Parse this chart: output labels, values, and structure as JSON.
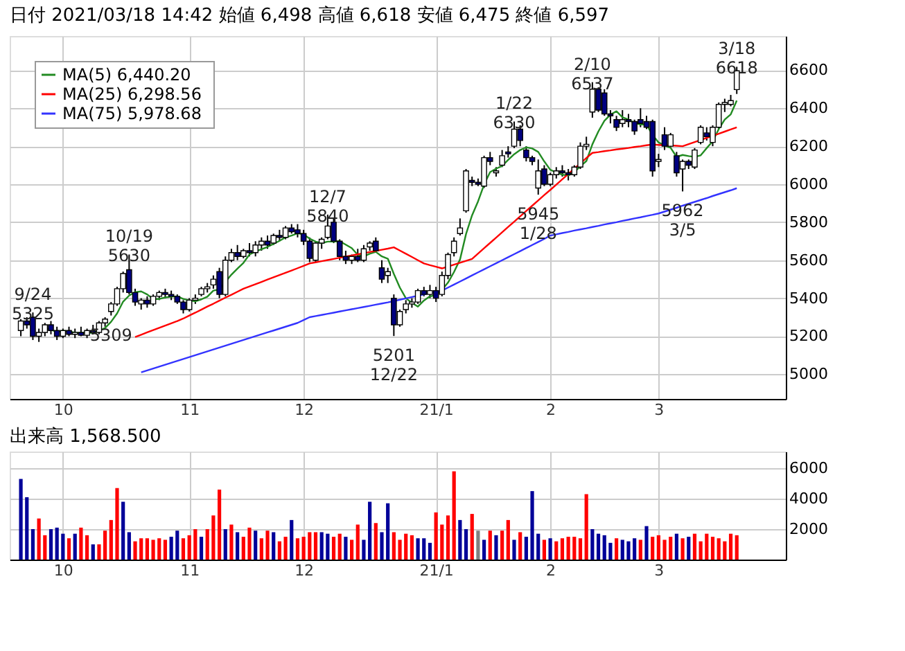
{
  "chart_data": [
    {
      "type": "candlestick",
      "title": "日付 2021/03/18 14:42 始値 6,498 高値 6,618 安値 6,475 終値 6,597",
      "categories": [
        null,
        null,
        null,
        null,
        null,
        null,
        null,
        "10",
        null,
        null,
        null,
        null,
        null,
        null,
        null,
        null,
        null,
        null,
        null,
        null,
        null,
        null,
        null,
        null,
        null,
        null,
        null,
        null,
        "11",
        null,
        null,
        null,
        null,
        null,
        null,
        null,
        null,
        null,
        null,
        null,
        null,
        null,
        null,
        null,
        null,
        null,
        null,
        "12",
        null,
        null,
        null,
        null,
        null,
        null,
        null,
        null,
        null,
        null,
        null,
        null,
        null,
        null,
        null,
        null,
        null,
        null,
        null,
        null,
        null,
        "21/1",
        null,
        null,
        null,
        null,
        null,
        null,
        null,
        null,
        null,
        null,
        null,
        null,
        null,
        null,
        null,
        null,
        null,
        null,
        "2",
        null,
        null,
        null,
        null,
        null,
        null,
        null,
        null,
        null,
        null,
        null,
        null,
        null,
        null,
        null,
        null,
        null,
        "3",
        null,
        null,
        null,
        null,
        null,
        null,
        null,
        null,
        null,
        null,
        null,
        null,
        null
      ],
      "ohlc": [
        [
          5230,
          5290,
          5200,
          5280
        ],
        [
          5280,
          5300,
          5240,
          5260
        ],
        [
          5300,
          5325,
          5180,
          5200
        ],
        [
          5200,
          5240,
          5170,
          5220
        ],
        [
          5220,
          5270,
          5200,
          5260
        ],
        [
          5260,
          5280,
          5210,
          5230
        ],
        [
          5230,
          5250,
          5180,
          5200
        ],
        [
          5200,
          5240,
          5190,
          5230
        ],
        [
          5230,
          5250,
          5200,
          5210
        ],
        [
          5210,
          5240,
          5190,
          5220
        ],
        [
          5220,
          5250,
          5200,
          5205
        ],
        [
          5205,
          5240,
          5190,
          5230
        ],
        [
          5230,
          5260,
          5210,
          5220
        ],
        [
          5220,
          5280,
          5210,
          5270
        ],
        [
          5270,
          5300,
          5250,
          5290
        ],
        [
          5330,
          5380,
          5309,
          5370
        ],
        [
          5370,
          5460,
          5360,
          5450
        ],
        [
          5450,
          5540,
          5430,
          5530
        ],
        [
          5550,
          5630,
          5420,
          5430
        ],
        [
          5430,
          5450,
          5360,
          5380
        ],
        [
          5370,
          5400,
          5340,
          5390
        ],
        [
          5390,
          5410,
          5350,
          5370
        ],
        [
          5370,
          5420,
          5360,
          5410
        ],
        [
          5410,
          5440,
          5390,
          5430
        ],
        [
          5430,
          5450,
          5400,
          5420
        ],
        [
          5420,
          5440,
          5390,
          5410
        ],
        [
          5410,
          5420,
          5370,
          5380
        ],
        [
          5380,
          5390,
          5320,
          5340
        ],
        [
          5340,
          5400,
          5330,
          5390
        ],
        [
          5390,
          5420,
          5370,
          5400
        ],
        [
          5420,
          5460,
          5410,
          5450
        ],
        [
          5450,
          5480,
          5430,
          5460
        ],
        [
          5470,
          5520,
          5450,
          5500
        ],
        [
          5540,
          5560,
          5400,
          5420
        ],
        [
          5420,
          5620,
          5410,
          5600
        ],
        [
          5600,
          5660,
          5590,
          5640
        ],
        [
          5640,
          5680,
          5600,
          5620
        ],
        [
          5620,
          5660,
          5610,
          5650
        ],
        [
          5650,
          5690,
          5620,
          5640
        ],
        [
          5640,
          5700,
          5620,
          5680
        ],
        [
          5680,
          5720,
          5650,
          5700
        ],
        [
          5700,
          5730,
          5660,
          5680
        ],
        [
          5690,
          5740,
          5680,
          5730
        ],
        [
          5730,
          5760,
          5700,
          5720
        ],
        [
          5720,
          5780,
          5710,
          5770
        ],
        [
          5770,
          5790,
          5740,
          5750
        ],
        [
          5760,
          5790,
          5720,
          5740
        ],
        [
          5740,
          5760,
          5680,
          5700
        ],
        [
          5700,
          5720,
          5590,
          5610
        ],
        [
          5600,
          5700,
          5590,
          5690
        ],
        [
          5690,
          5720,
          5660,
          5710
        ],
        [
          5720,
          5840,
          5710,
          5780
        ],
        [
          5800,
          5820,
          5690,
          5700
        ],
        [
          5700,
          5710,
          5600,
          5620
        ],
        [
          5620,
          5650,
          5580,
          5600
        ],
        [
          5600,
          5630,
          5580,
          5620
        ],
        [
          5620,
          5660,
          5590,
          5600
        ],
        [
          5600,
          5680,
          5590,
          5660
        ],
        [
          5670,
          5700,
          5650,
          5690
        ],
        [
          5700,
          5720,
          5640,
          5650
        ],
        [
          5560,
          5600,
          5480,
          5500
        ],
        [
          5520,
          5560,
          5480,
          5540
        ],
        [
          5400,
          5420,
          5201,
          5260
        ],
        [
          5260,
          5340,
          5250,
          5330
        ],
        [
          5340,
          5390,
          5320,
          5370
        ],
        [
          5370,
          5400,
          5350,
          5380
        ],
        [
          5380,
          5450,
          5370,
          5440
        ],
        [
          5440,
          5460,
          5410,
          5420
        ],
        [
          5420,
          5470,
          5400,
          5440
        ],
        [
          5440,
          5460,
          5380,
          5400
        ],
        [
          5420,
          5540,
          5410,
          5520
        ],
        [
          5520,
          5640,
          5500,
          5630
        ],
        [
          5640,
          5720,
          5620,
          5700
        ],
        [
          5740,
          5820,
          5730,
          5770
        ],
        [
          5860,
          6080,
          5850,
          6070
        ],
        [
          6020,
          6040,
          5990,
          6010
        ],
        [
          6010,
          6030,
          5990,
          6000
        ],
        [
          5990,
          6150,
          5980,
          6140
        ],
        [
          6140,
          6170,
          6100,
          6120
        ],
        [
          6060,
          6090,
          6040,
          6070
        ],
        [
          6100,
          6180,
          6090,
          6150
        ],
        [
          6170,
          6200,
          6140,
          6160
        ],
        [
          6200,
          6330,
          6190,
          6290
        ],
        [
          6290,
          6310,
          6200,
          6230
        ],
        [
          6180,
          6200,
          6120,
          6140
        ],
        [
          6140,
          6150,
          6100,
          6120
        ],
        [
          5980,
          6130,
          5945,
          6070
        ],
        [
          6080,
          6100,
          5990,
          6000
        ],
        [
          6000,
          6060,
          5990,
          6050
        ],
        [
          6050,
          6090,
          6030,
          6070
        ],
        [
          6070,
          6100,
          6040,
          6060
        ],
        [
          6060,
          6080,
          6020,
          6050
        ],
        [
          6050,
          6100,
          6040,
          6090
        ],
        [
          6090,
          6220,
          6080,
          6200
        ],
        [
          6200,
          6250,
          6180,
          6210
        ],
        [
          6380,
          6537,
          6350,
          6500
        ],
        [
          6500,
          6510,
          6380,
          6390
        ],
        [
          6480,
          6500,
          6360,
          6370
        ],
        [
          6370,
          6390,
          6320,
          6360
        ],
        [
          6340,
          6360,
          6280,
          6300
        ],
        [
          6320,
          6390,
          6300,
          6340
        ],
        [
          6340,
          6370,
          6300,
          6330
        ],
        [
          6330,
          6340,
          6260,
          6280
        ],
        [
          6340,
          6400,
          6300,
          6320
        ],
        [
          6330,
          6360,
          6290,
          6300
        ],
        [
          6330,
          6340,
          6040,
          6070
        ],
        [
          6120,
          6160,
          6090,
          6130
        ],
        [
          6260,
          6300,
          6180,
          6200
        ],
        [
          6200,
          6270,
          6190,
          6260
        ],
        [
          6150,
          6170,
          6040,
          6060
        ],
        [
          6080,
          6130,
          5962,
          6120
        ],
        [
          6120,
          6130,
          6080,
          6100
        ],
        [
          6090,
          6190,
          6080,
          6180
        ],
        [
          6220,
          6310,
          6210,
          6300
        ],
        [
          6270,
          6300,
          6230,
          6250
        ],
        [
          6220,
          6310,
          6200,
          6300
        ],
        [
          6300,
          6430,
          6290,
          6420
        ],
        [
          6420,
          6450,
          6380,
          6430
        ],
        [
          6420,
          6470,
          6410,
          6440
        ],
        [
          6498,
          6618,
          6475,
          6597
        ]
      ],
      "colors": [
        "#ffffff",
        "#000080",
        "#000080",
        "#ffffff",
        "#ffffff",
        "#000080",
        "#000080",
        "#ffffff",
        "#000080",
        "#ffffff",
        "#000080",
        "#ffffff",
        "#000080",
        "#ffffff",
        "#ffffff",
        "#ffffff",
        "#ffffff",
        "#ffffff",
        "#000080",
        "#000080",
        "#ffffff",
        "#000080",
        "#ffffff",
        "#ffffff",
        "#000080",
        "#000080",
        "#000080",
        "#000080",
        "#ffffff",
        "#ffffff",
        "#ffffff",
        "#ffffff",
        "#ffffff",
        "#000080",
        "#ffffff",
        "#ffffff",
        "#000080",
        "#ffffff",
        "#000080",
        "#ffffff",
        "#ffffff",
        "#000080",
        "#ffffff",
        "#000080",
        "#ffffff",
        "#000080",
        "#000080",
        "#000080",
        "#000080",
        "#ffffff",
        "#ffffff",
        "#ffffff",
        "#000080",
        "#000080",
        "#000080",
        "#ffffff",
        "#000080",
        "#ffffff",
        "#ffffff",
        "#000080",
        "#000080",
        "#ffffff",
        "#000080",
        "#ffffff",
        "#ffffff",
        "#ffffff",
        "#ffffff",
        "#000080",
        "#ffffff",
        "#000080",
        "#ffffff",
        "#ffffff",
        "#ffffff",
        "#ffffff",
        "#ffffff",
        "#000080",
        "#000080",
        "#ffffff",
        "#000080",
        "#ffffff",
        "#ffffff",
        "#000080",
        "#ffffff",
        "#000080",
        "#000080",
        "#000080",
        "#ffffff",
        "#000080",
        "#ffffff",
        "#ffffff",
        "#000080",
        "#000080",
        "#ffffff",
        "#ffffff",
        "#ffffff",
        "#ffffff",
        "#000080",
        "#000080",
        "#000080",
        "#000080",
        "#ffffff",
        "#000080",
        "#000080",
        "#000080",
        "#000080",
        "#000080",
        "#ffffff",
        "#000080",
        "#ffffff",
        "#000080",
        "#ffffff",
        "#000080",
        "#ffffff",
        "#ffffff",
        "#000080",
        "#ffffff",
        "#ffffff",
        "#ffffff",
        "#ffffff",
        "#ffffff"
      ],
      "series": [
        {
          "type": "line",
          "name": "MA(5)  6,440.20",
          "color": "#228b22",
          "values": [
            null,
            null,
            null,
            null,
            5244,
            5234,
            5222,
            5228,
            5226,
            5218,
            5217,
            5219,
            5217,
            5229,
            5243,
            5276,
            5320,
            5382,
            5414,
            5432,
            5436,
            5420,
            5396,
            5396,
            5404,
            5408,
            5410,
            5396,
            5388,
            5384,
            5394,
            5408,
            5440,
            5446,
            5486,
            5524,
            5556,
            5586,
            5630,
            5646,
            5658,
            5670,
            5686,
            5702,
            5720,
            5730,
            5742,
            5736,
            5714,
            5698,
            5690,
            5698,
            5698,
            5700,
            5682,
            5664,
            5628,
            5620,
            5634,
            5644,
            5620,
            5608,
            5528,
            5456,
            5400,
            5376,
            5356,
            5388,
            5410,
            5416,
            5444,
            5482,
            5538,
            5604,
            5738,
            5836,
            5910,
            5998,
            6064,
            6082,
            6096,
            6128,
            6158,
            6180,
            6194,
            6188,
            6170,
            6120,
            6076,
            6062,
            6050,
            6046,
            6064,
            6094,
            6122,
            6210,
            6278,
            6334,
            6366,
            6384,
            6352,
            6340,
            6322,
            6314,
            6314,
            6260,
            6220,
            6204,
            6192,
            6144,
            6154,
            6148,
            6144,
            6152,
            6190,
            6226,
            6290,
            6340,
            6368,
            6440
          ]
        },
        {
          "type": "line",
          "name": "MA(25)  6,298.56",
          "color": "#ff0000",
          "values": [
            null,
            null,
            null,
            null,
            null,
            null,
            null,
            null,
            null,
            null,
            null,
            null,
            null,
            null,
            null,
            null,
            null,
            null,
            null,
            5196,
            5208,
            5220,
            5232,
            5244,
            5256,
            5268,
            5280,
            5293,
            5309,
            5324,
            5340,
            5356,
            5371,
            5387,
            5403,
            5418,
            5434,
            5450,
            5462,
            5474,
            5486,
            5498,
            5510,
            5522,
            5534,
            5546,
            5558,
            5570,
            5583,
            5589,
            5595,
            5601,
            5607,
            5613,
            5619,
            5625,
            5631,
            5637,
            5643,
            5649,
            5655,
            5661,
            5668,
            5651,
            5634,
            5617,
            5600,
            5583,
            5574,
            5566,
            5557,
            5567,
            5577,
            5587,
            5597,
            5607,
            5635,
            5663,
            5691,
            5719,
            5747,
            5775,
            5803,
            5831,
            5859,
            5887,
            5915,
            5943,
            5970,
            5998,
            6026,
            6054,
            6082,
            6110,
            6138,
            6165,
            6169,
            6174,
            6178,
            6183,
            6187,
            6191,
            6196,
            6200,
            6205,
            6209,
            6207,
            6205,
            6204,
            6202,
            6200,
            6211,
            6222,
            6233,
            6244,
            6255,
            6266,
            6277,
            6288,
            6299
          ]
        },
        {
          "type": "line",
          "name": "MA(75)  5,978.68",
          "color": "#3333ff",
          "values": [
            null,
            null,
            null,
            null,
            null,
            null,
            null,
            null,
            null,
            null,
            null,
            null,
            null,
            null,
            null,
            null,
            null,
            null,
            null,
            null,
            5010,
            5020,
            5030,
            5040,
            5050,
            5060,
            5070,
            5080,
            5090,
            5100,
            5110,
            5120,
            5130,
            5140,
            5150,
            5160,
            5170,
            5180,
            5190,
            5200,
            5210,
            5220,
            5230,
            5240,
            5250,
            5260,
            5270,
            5285,
            5300,
            5306,
            5312,
            5318,
            5324,
            5330,
            5336,
            5342,
            5348,
            5354,
            5360,
            5366,
            5372,
            5378,
            5385,
            5392,
            5399,
            5406,
            5413,
            5420,
            5427,
            5434,
            5440,
            5456,
            5472,
            5488,
            5504,
            5520,
            5536,
            5552,
            5568,
            5584,
            5600,
            5616,
            5632,
            5648,
            5664,
            5680,
            5696,
            5712,
            5730,
            5736,
            5743,
            5749,
            5756,
            5762,
            5768,
            5775,
            5781,
            5788,
            5794,
            5800,
            5807,
            5813,
            5820,
            5826,
            5833,
            5839,
            5846,
            5856,
            5866,
            5876,
            5887,
            5897,
            5907,
            5917,
            5927,
            5938,
            5948,
            5958,
            5968,
            5979
          ]
        }
      ],
      "annotations": [
        {
          "text": "9/24\n5325",
          "y": 5325
        },
        {
          "text": "10/19\n5630",
          "y": 5630
        },
        {
          "text": "5309",
          "y": 5309
        },
        {
          "text": "12/7\n5840",
          "y": 5840
        },
        {
          "text": "5201\n12/22",
          "y": 5201
        },
        {
          "text": "1/22\n6330",
          "y": 6330
        },
        {
          "text": "5945\n1/28",
          "y": 5945
        },
        {
          "text": "2/10\n6537",
          "y": 6537
        },
        {
          "text": "5962\n3/5",
          "y": 5962
        },
        {
          "text": "3/18\n6618",
          "y": 6618
        }
      ],
      "ylim": [
        4870,
        6780
      ],
      "yticks": [
        5000,
        5200,
        5400,
        5600,
        5800,
        6000,
        6200,
        6400,
        6600
      ],
      "grid": true,
      "legend": "top left"
    },
    {
      "type": "bar",
      "title": "出来高  1,568.500",
      "categories": [
        null,
        null,
        null,
        null,
        null,
        null,
        null,
        "10",
        null,
        null,
        null,
        null,
        null,
        null,
        null,
        null,
        null,
        null,
        null,
        null,
        null,
        null,
        null,
        null,
        null,
        null,
        null,
        null,
        "11",
        null,
        null,
        null,
        null,
        null,
        null,
        null,
        null,
        null,
        null,
        null,
        null,
        null,
        null,
        null,
        null,
        null,
        null,
        "12",
        null,
        null,
        null,
        null,
        null,
        null,
        null,
        null,
        null,
        null,
        null,
        null,
        null,
        null,
        null,
        null,
        null,
        null,
        null,
        null,
        null,
        "21/1",
        null,
        null,
        null,
        null,
        null,
        null,
        null,
        null,
        null,
        null,
        null,
        null,
        null,
        null,
        null,
        null,
        null,
        null,
        "2",
        null,
        null,
        null,
        null,
        null,
        null,
        null,
        null,
        null,
        null,
        null,
        null,
        null,
        null,
        null,
        null,
        null,
        "3",
        null,
        null,
        null,
        null,
        null,
        null,
        null,
        null,
        null,
        null,
        null,
        null,
        null
      ],
      "values": [
        5300,
        4100,
        2000,
        2700,
        1600,
        2000,
        2100,
        1700,
        1400,
        1700,
        2100,
        1600,
        1000,
        1000,
        1900,
        2600,
        4700,
        3800,
        1800,
        1200,
        1400,
        1400,
        1300,
        1400,
        1300,
        1500,
        1900,
        1400,
        1600,
        2000,
        1500,
        2000,
        2900,
        4600,
        2000,
        2300,
        1800,
        1500,
        2100,
        1900,
        1400,
        1900,
        1800,
        1200,
        1500,
        2600,
        1400,
        1500,
        1800,
        1800,
        1800,
        1700,
        1500,
        1700,
        1500,
        1300,
        2300,
        1300,
        3800,
        2400,
        1800,
        3700,
        1800,
        1300,
        1700,
        1600,
        1400,
        1400,
        1100,
        3100,
        2300,
        2900,
        5800,
        2600,
        2000,
        3000,
        1900,
        1300,
        1900,
        1600,
        1900,
        2600,
        1300,
        1800,
        1500,
        4500,
        1700,
        1300,
        1400,
        1200,
        1400,
        1500,
        1500,
        1400,
        4300,
        2000,
        1700,
        1600,
        1100,
        1400,
        1300,
        1200,
        1400,
        1300,
        2200,
        1500,
        1600,
        1300,
        1500,
        1700,
        1400,
        1500,
        1700,
        1200,
        1700,
        1500,
        1400,
        1200,
        1700,
        1600
      ],
      "colors": [
        "#000099",
        "#000099",
        "#000099",
        "#ff0000",
        "#ff0000",
        "#000099",
        "#000099",
        "#000099",
        "#ff0000",
        "#000099",
        "#ff0000",
        "#ff0000",
        "#000099",
        "#ff0000",
        "#ff0000",
        "#ff0000",
        "#ff0000",
        "#000099",
        "#000099",
        "#ff0000",
        "#ff0000",
        "#ff0000",
        "#ff0000",
        "#ff0000",
        "#ff0000",
        "#000099",
        "#000099",
        "#ff0000",
        "#ff0000",
        "#ff0000",
        "#000099",
        "#ff0000",
        "#ff0000",
        "#ff0000",
        "#000099",
        "#ff0000",
        "#000099",
        "#ff0000",
        "#ff0000",
        "#000099",
        "#ff0000",
        "#ff0000",
        "#000099",
        "#ff0000",
        "#ff0000",
        "#000099",
        "#ff0000",
        "#ff0000",
        "#ff0000",
        "#ff0000",
        "#000099",
        "#000099",
        "#ff0000",
        "#ff0000",
        "#000099",
        "#ff0000",
        "#ff0000",
        "#000099",
        "#000099",
        "#ff0000",
        "#000099",
        "#000099",
        "#ff0000",
        "#ff0000",
        "#ff0000",
        "#ff0000",
        "#000099",
        "#000099",
        "#000099",
        "#ff0000",
        "#ff0000",
        "#ff0000",
        "#ff0000",
        "#000099",
        "#000099",
        "#ff0000",
        "#808080",
        "#000099",
        "#ff0000",
        "#000099",
        "#ff0000",
        "#ff0000",
        "#000099",
        "#ff0000",
        "#000099",
        "#000099",
        "#000099",
        "#ff0000",
        "#000099",
        "#ff0000",
        "#ff0000",
        "#ff0000",
        "#ff0000",
        "#ff0000",
        "#ff0000",
        "#000099",
        "#000099",
        "#000099",
        "#000099",
        "#ff0000",
        "#000099",
        "#000099",
        "#000099",
        "#ff0000",
        "#000099",
        "#ff0000",
        "#ff0000",
        "#ff0000",
        "#ff0000",
        "#000099",
        "#ff0000",
        "#000099",
        "#ff0000",
        "#ff0000",
        "#ff0000",
        "#ff0000",
        "#ff0000",
        "#ff0000",
        "#ff0000",
        "#ff0000"
      ],
      "ylim": [
        0,
        7100
      ],
      "yticks": [
        2000,
        4000,
        6000
      ],
      "grid": true
    }
  ]
}
